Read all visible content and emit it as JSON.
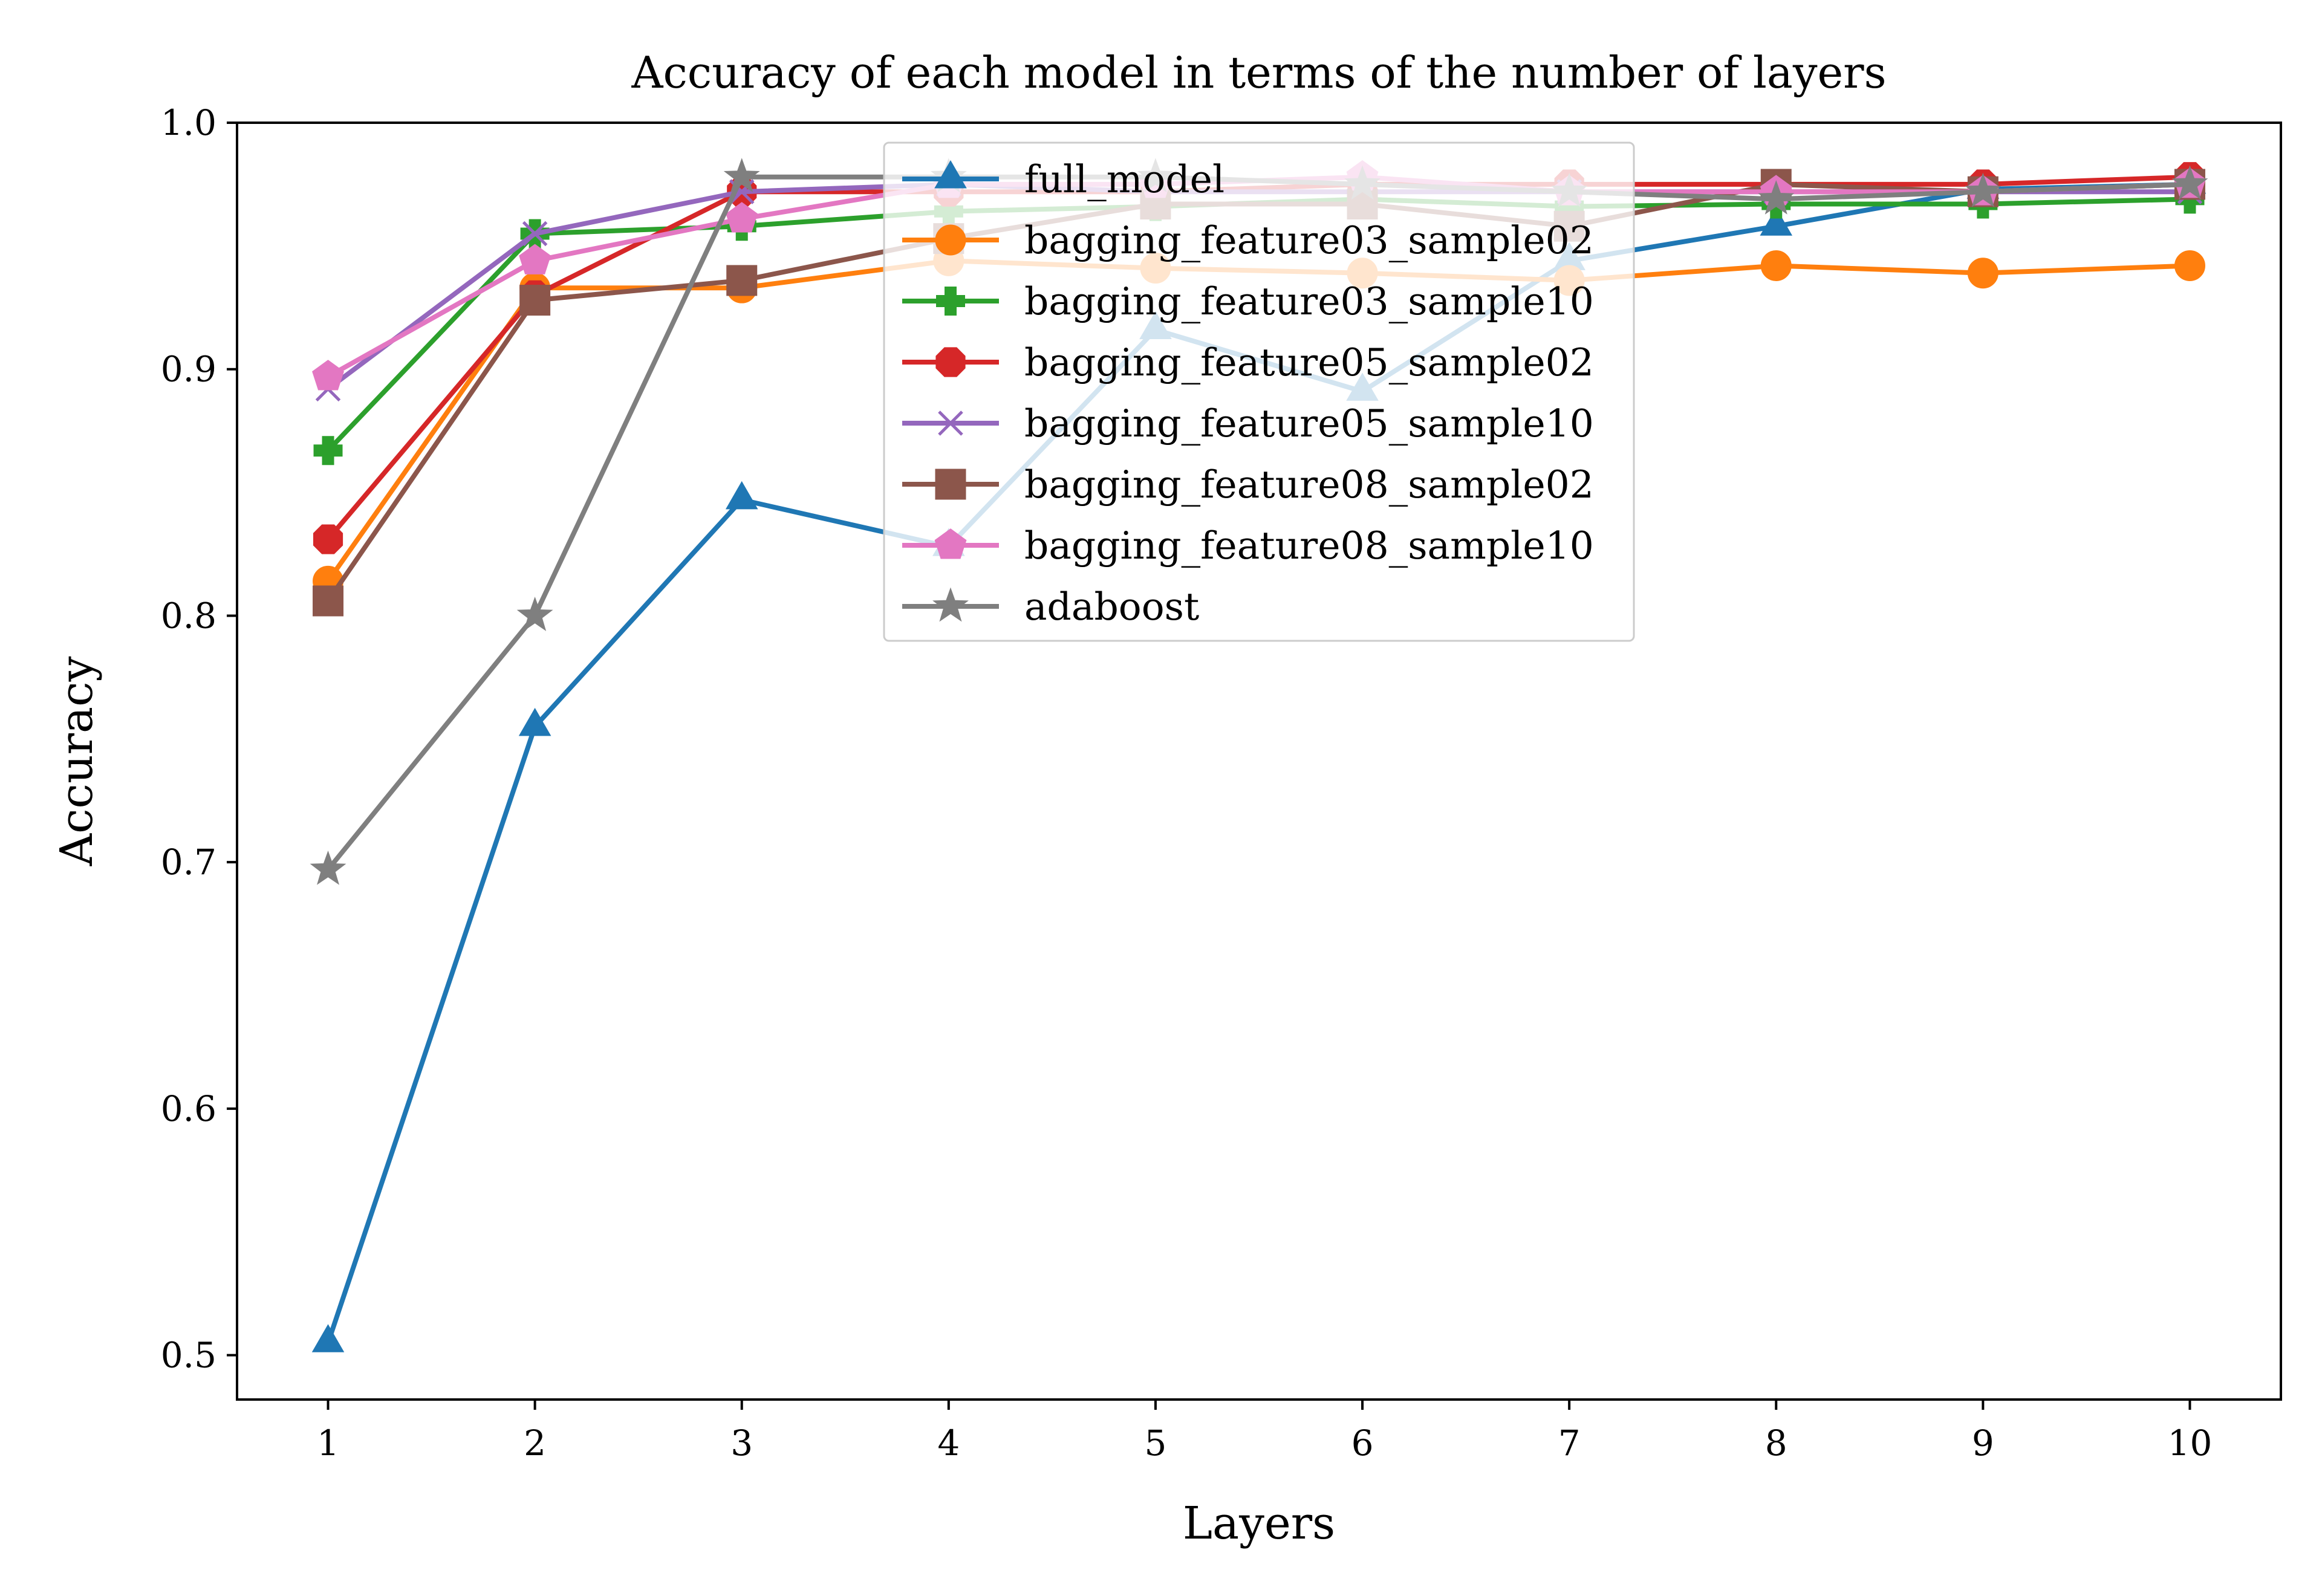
{
  "chart_data": {
    "type": "line",
    "title": "Accuracy of each model in terms of the number of layers",
    "xlabel": "Layers",
    "ylabel": "Accuracy",
    "x": [
      1,
      2,
      3,
      4,
      5,
      6,
      7,
      8,
      9,
      10
    ],
    "xticks": [
      "1",
      "2",
      "3",
      "4",
      "5",
      "6",
      "7",
      "8",
      "9",
      "10"
    ],
    "yticks": [
      "0.5",
      "0.6",
      "0.7",
      "0.8",
      "0.9",
      "1.0"
    ],
    "xlim": [
      0.56,
      10.44
    ],
    "ylim": [
      0.482,
      1.0
    ],
    "grid": false,
    "legend_position": "top-center",
    "series": [
      {
        "name": "full_model",
        "color": "#1f77b4",
        "marker": "triangle",
        "values": [
          0.505,
          0.755,
          0.847,
          0.828,
          0.916,
          0.891,
          0.944,
          0.958,
          0.973,
          0.975
        ]
      },
      {
        "name": "bagging_feature03_sample02",
        "color": "#ff7f0e",
        "marker": "circle",
        "values": [
          0.814,
          0.933,
          0.933,
          0.944,
          0.941,
          0.939,
          0.936,
          0.942,
          0.939,
          0.942
        ]
      },
      {
        "name": "bagging_feature03_sample10",
        "color": "#2ca02c",
        "marker": "plus",
        "values": [
          0.867,
          0.955,
          0.958,
          0.964,
          0.966,
          0.969,
          0.966,
          0.967,
          0.967,
          0.969
        ]
      },
      {
        "name": "bagging_feature05_sample02",
        "color": "#d62728",
        "marker": "octagon",
        "values": [
          0.831,
          0.93,
          0.972,
          0.972,
          0.972,
          0.975,
          0.975,
          0.975,
          0.975,
          0.978
        ]
      },
      {
        "name": "bagging_feature05_sample10",
        "color": "#9467bd",
        "marker": "x",
        "values": [
          0.892,
          0.955,
          0.972,
          0.975,
          0.972,
          0.972,
          0.972,
          0.972,
          0.972,
          0.972
        ]
      },
      {
        "name": "bagging_feature08_sample02",
        "color": "#8c564b",
        "marker": "square",
        "values": [
          0.806,
          0.928,
          0.936,
          0.953,
          0.967,
          0.967,
          0.958,
          0.975,
          0.972,
          0.975
        ]
      },
      {
        "name": "bagging_feature08_sample10",
        "color": "#e377c2",
        "marker": "pentagon",
        "values": [
          0.897,
          0.944,
          0.961,
          0.975,
          0.975,
          0.978,
          0.972,
          0.972,
          0.972,
          0.975
        ]
      },
      {
        "name": "adaboost",
        "color": "#7f7f7f",
        "marker": "star",
        "values": [
          0.697,
          0.8,
          0.978,
          0.978,
          0.978,
          0.975,
          0.972,
          0.969,
          0.972,
          0.975
        ]
      }
    ]
  }
}
